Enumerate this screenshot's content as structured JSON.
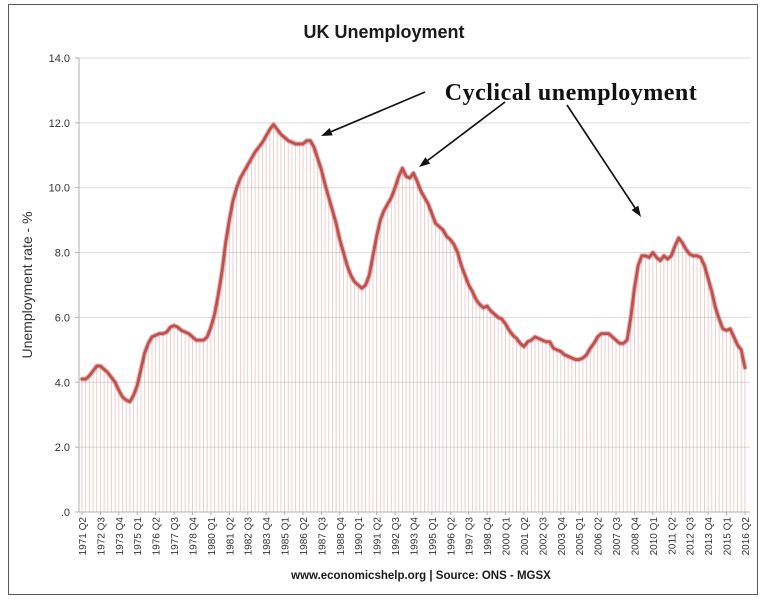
{
  "title": "UK Unemployment",
  "footer": "www.economicshelp.org | Source: ONS - MGSX",
  "y_axis": {
    "title": "Unemployment rate - %",
    "tick_labels": [
      "14.0",
      "12.0",
      "10.0",
      "8.0",
      "6.0",
      "4.0",
      "2.0",
      ".0"
    ]
  },
  "annotation": {
    "text": "Cyclical unemployment",
    "arrows": [
      {
        "target": "1984-1986 unemployment peak",
        "from": [
          425,
          92
        ],
        "to": [
          321,
          136
        ]
      },
      {
        "target": "1992-1993 unemployment peak",
        "from": [
          505,
          102
        ],
        "to": [
          419,
          167
        ]
      },
      {
        "target": "2009-2012 unemployment peak",
        "from": [
          567,
          105
        ],
        "to": [
          641,
          217
        ]
      }
    ]
  },
  "colors": {
    "line": "#C0504D",
    "line_glow": "rgba(192,80,77,0.40)",
    "dropline": "rgba(192,80,77,0.30)",
    "gridline": "#dcdcdc",
    "axis": "#b0b0b0",
    "frame": "#595959",
    "arrow": "#111111"
  },
  "chart_data": {
    "type": "line",
    "title": "UK Unemployment",
    "xlabel": "",
    "ylabel": "Unemployment rate - %",
    "ylim": [
      0,
      14
    ],
    "y_ticks": [
      0,
      2,
      4,
      6,
      8,
      10,
      12,
      14
    ],
    "grid": "horizontal",
    "legend": "none",
    "frequency": "quarterly",
    "x_start": "1971 Q2",
    "x_end": "2016 Q2",
    "x_tick_every": 5,
    "x_tick_labels": [
      "1971 Q2",
      "1972 Q3",
      "1973 Q4",
      "1975 Q1",
      "1976 Q2",
      "1977 Q3",
      "1978 Q4",
      "1980 Q1",
      "1981 Q2",
      "1982 Q3",
      "1983 Q4",
      "1985 Q1",
      "1986 Q2",
      "1987 Q3",
      "1988 Q4",
      "1990 Q1",
      "1991 Q2",
      "1992 Q3",
      "1993 Q4",
      "1995 Q1",
      "1996 Q2",
      "1997 Q3",
      "1998 Q4",
      "2000 Q1",
      "2001 Q2",
      "2002 Q3",
      "2003 Q4",
      "2005 Q1",
      "2006 Q2",
      "2007 Q3",
      "2008 Q4",
      "2010 Q1",
      "2011 Q2",
      "2012 Q3",
      "2013 Q4",
      "2015 Q1",
      "2016 Q2"
    ],
    "series": [
      {
        "name": "UK unemployment rate (%)",
        "style": "line-with-droplines",
        "values": [
          4.1,
          4.1,
          4.2,
          4.35,
          4.5,
          4.5,
          4.4,
          4.3,
          4.15,
          4.0,
          3.75,
          3.55,
          3.45,
          3.4,
          3.6,
          3.9,
          4.4,
          4.9,
          5.2,
          5.4,
          5.45,
          5.5,
          5.5,
          5.55,
          5.7,
          5.75,
          5.7,
          5.6,
          5.55,
          5.5,
          5.4,
          5.3,
          5.3,
          5.3,
          5.4,
          5.7,
          6.1,
          6.7,
          7.4,
          8.3,
          9.0,
          9.6,
          10.0,
          10.3,
          10.5,
          10.7,
          10.9,
          11.1,
          11.25,
          11.4,
          11.6,
          11.8,
          11.95,
          11.8,
          11.65,
          11.55,
          11.45,
          11.4,
          11.35,
          11.35,
          11.35,
          11.45,
          11.45,
          11.25,
          10.9,
          10.55,
          10.1,
          9.7,
          9.3,
          8.9,
          8.4,
          8.0,
          7.6,
          7.3,
          7.1,
          7.0,
          6.9,
          7.0,
          7.3,
          7.9,
          8.5,
          9.0,
          9.3,
          9.5,
          9.7,
          10.0,
          10.35,
          10.6,
          10.35,
          10.3,
          10.45,
          10.2,
          9.9,
          9.7,
          9.5,
          9.2,
          8.9,
          8.8,
          8.7,
          8.5,
          8.4,
          8.25,
          8.0,
          7.6,
          7.3,
          7.0,
          6.8,
          6.55,
          6.4,
          6.3,
          6.35,
          6.2,
          6.1,
          6.0,
          5.95,
          5.8,
          5.6,
          5.45,
          5.35,
          5.2,
          5.1,
          5.25,
          5.3,
          5.4,
          5.35,
          5.3,
          5.25,
          5.25,
          5.05,
          5.0,
          4.95,
          4.85,
          4.8,
          4.75,
          4.7,
          4.7,
          4.75,
          4.85,
          5.05,
          5.2,
          5.4,
          5.5,
          5.5,
          5.5,
          5.4,
          5.3,
          5.2,
          5.2,
          5.3,
          6.0,
          6.9,
          7.6,
          7.9,
          7.9,
          7.85,
          8.0,
          7.85,
          7.75,
          7.9,
          7.8,
          7.9,
          8.2,
          8.45,
          8.3,
          8.1,
          7.95,
          7.9,
          7.9,
          7.85,
          7.6,
          7.2,
          6.8,
          6.3,
          5.95,
          5.65,
          5.6,
          5.65,
          5.4,
          5.15,
          5.0,
          4.45
        ]
      }
    ]
  }
}
